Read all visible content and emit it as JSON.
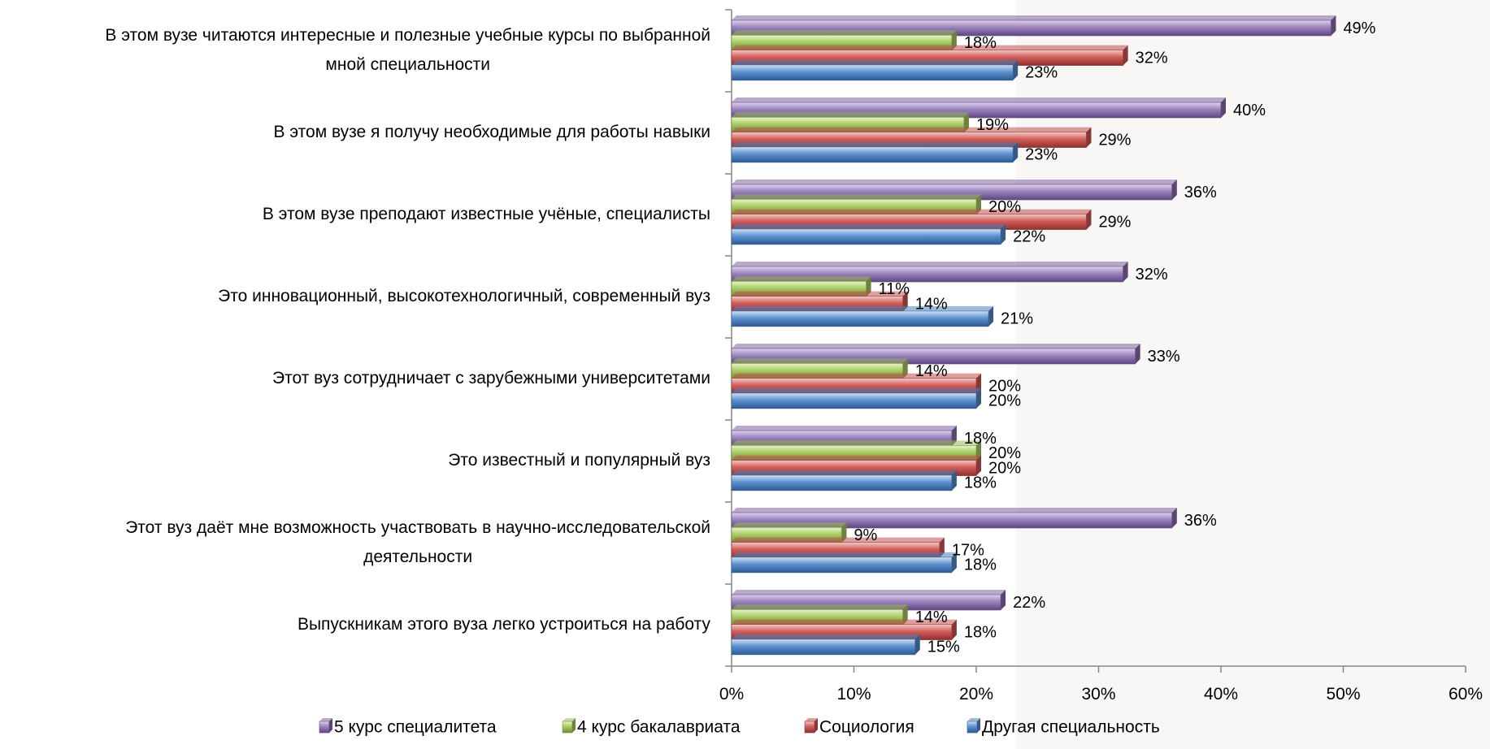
{
  "chart_data": {
    "type": "bar",
    "orientation": "horizontal",
    "categories": [
      "В этом вузе читаются интересные и полезные учебные курсы по выбранной мной специальности",
      "В этом вузе я получу необходимые для работы навыки",
      "В этом вузе преподают известные учёные, специалисты",
      "Это инновационный, высокотехнологичный, современный вуз",
      "Этот вуз сотрудничает с зарубежными университетами",
      "Это известный и популярный вуз",
      "Этот вуз даёт мне возможность участвовать в научно-исследовательской деятельности",
      "Выпускникам этого вуза легко устроиться на работу"
    ],
    "category_lines": [
      [
        "В этом вузе читаются интересные и полезные учебные курсы по выбранной",
        "мной специальности"
      ],
      [
        "В этом вузе я получу необходимые для работы навыки"
      ],
      [
        "В этом вузе преподают известные учёные, специалисты"
      ],
      [
        "Это инновационный, высокотехнологичный, современный вуз"
      ],
      [
        "Этот вуз сотрудничает с зарубежными университетами"
      ],
      [
        "Это известный и популярный вуз"
      ],
      [
        "Этот вуз даёт мне возможность участвовать в научно-исследовательской",
        "деятельности"
      ],
      [
        "Выпускникам этого вуза легко устроиться на работу"
      ]
    ],
    "series": [
      {
        "name": "5 курс специалитета",
        "color": "#8064A2",
        "values": [
          49,
          40,
          36,
          32,
          33,
          18,
          36,
          22
        ]
      },
      {
        "name": "4 курс бакалавриата",
        "color": "#9BBB59",
        "values": [
          18,
          19,
          20,
          11,
          14,
          20,
          9,
          14
        ]
      },
      {
        "name": "Социология",
        "color": "#C0504D",
        "values": [
          32,
          29,
          29,
          14,
          20,
          20,
          17,
          18
        ]
      },
      {
        "name": "Другая специальность",
        "color": "#4F81BD",
        "values": [
          23,
          23,
          22,
          21,
          20,
          18,
          18,
          15
        ]
      }
    ],
    "value_suffix": "%",
    "xlim": [
      0,
      60
    ],
    "xticks": [
      0,
      10,
      20,
      30,
      40,
      50,
      60
    ],
    "xtick_labels": [
      "0%",
      "10%",
      "20%",
      "30%",
      "40%",
      "50%",
      "60%"
    ],
    "title": "",
    "xlabel": "",
    "ylabel": "",
    "grid": false,
    "legend_position": "bottom"
  }
}
